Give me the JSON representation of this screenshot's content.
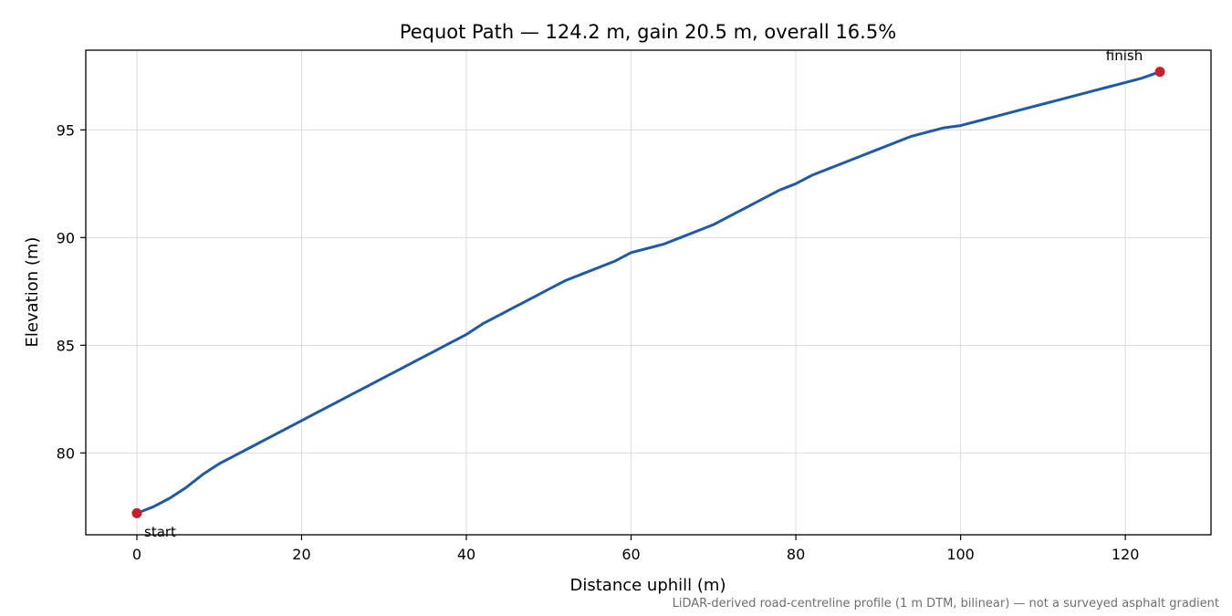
{
  "chart_data": {
    "type": "line",
    "title": "Pequot Path — 124.2 m, gain 20.5 m, overall 16.5%",
    "xlabel": "Distance uphill (m)",
    "ylabel": "Elevation (m)",
    "xlim": [
      -6.2,
      130.4
    ],
    "ylim": [
      76.2,
      98.7
    ],
    "xticks": [
      0,
      20,
      40,
      60,
      80,
      100,
      120
    ],
    "yticks": [
      80,
      85,
      90,
      95
    ],
    "grid": true,
    "series": [
      {
        "color": "#1f5aa8",
        "x": [
          0,
          2,
          4,
          6,
          8,
          10,
          12,
          14,
          16,
          18,
          20,
          22,
          24,
          26,
          28,
          30,
          32,
          34,
          36,
          38,
          40,
          42,
          44,
          46,
          48,
          50,
          52,
          54,
          56,
          58,
          60,
          62,
          64,
          66,
          68,
          70,
          72,
          74,
          76,
          78,
          80,
          82,
          84,
          86,
          88,
          90,
          92,
          94,
          96,
          98,
          100,
          102,
          104,
          106,
          108,
          110,
          112,
          114,
          116,
          118,
          120,
          122,
          124.2
        ],
        "y": [
          77.2,
          77.5,
          77.9,
          78.4,
          79.0,
          79.5,
          79.9,
          80.3,
          80.7,
          81.1,
          81.5,
          81.9,
          82.3,
          82.7,
          83.1,
          83.5,
          83.9,
          84.3,
          84.7,
          85.1,
          85.5,
          86.0,
          86.4,
          86.8,
          87.2,
          87.6,
          88.0,
          88.3,
          88.6,
          88.9,
          89.3,
          89.5,
          89.7,
          90.0,
          90.3,
          90.6,
          91.0,
          91.4,
          91.8,
          92.2,
          92.5,
          92.9,
          93.2,
          93.5,
          93.8,
          94.1,
          94.4,
          94.7,
          94.9,
          95.1,
          95.2,
          95.4,
          95.6,
          95.8,
          96.0,
          96.2,
          96.4,
          96.6,
          96.8,
          97.0,
          97.2,
          97.4,
          97.7
        ]
      }
    ],
    "markers": [
      {
        "name": "start",
        "x": 0,
        "y": 77.2
      },
      {
        "name": "finish",
        "x": 124.2,
        "y": 97.7
      }
    ],
    "marker_color": "#c8202a",
    "footnote": "LiDAR-derived road-centreline profile (1 m DTM, bilinear) — not a surveyed asphalt gradient"
  }
}
